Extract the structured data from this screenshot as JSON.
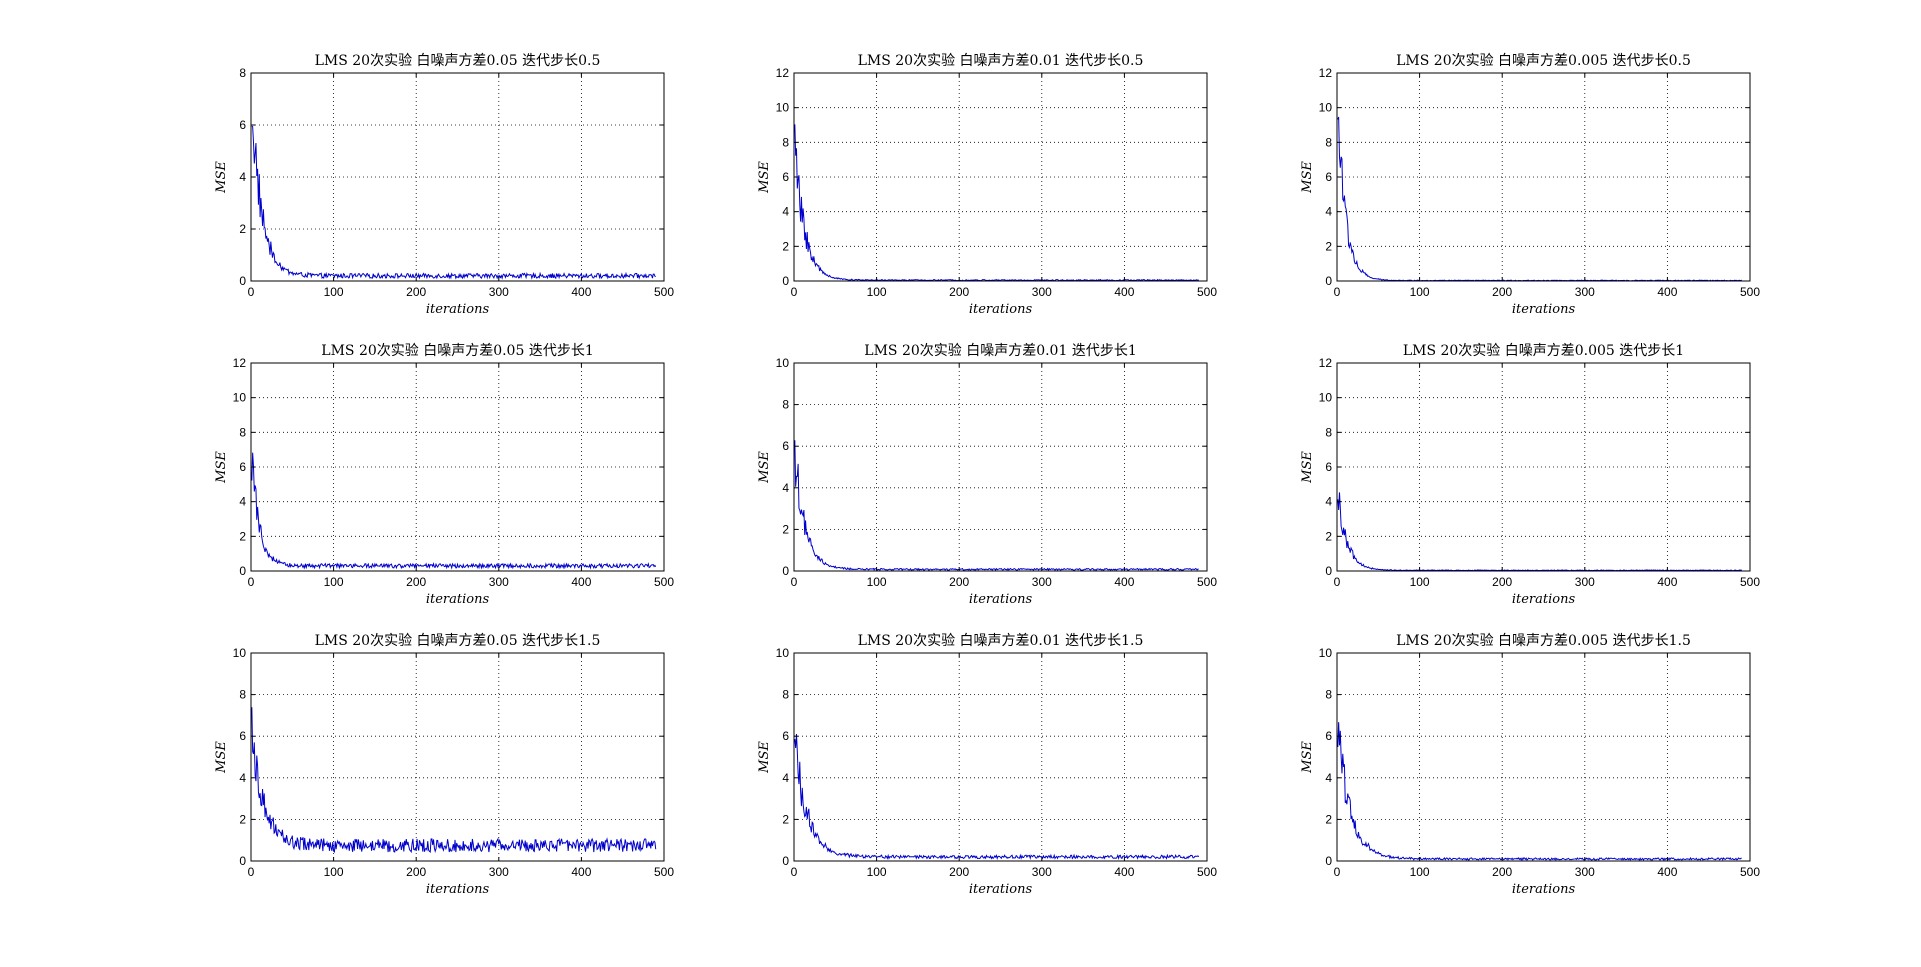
{
  "figure": {
    "background": "#ffffff",
    "line_color": "#0000cc"
  },
  "chart_data": [
    {
      "type": "line",
      "title": "LMS 20次实验 白噪声方差0.05 迭代步长0.5",
      "xlabel": "iterations",
      "ylabel": "MSE",
      "xlim": [
        0,
        500
      ],
      "ylim": [
        0,
        8
      ],
      "xticks": [
        0,
        100,
        200,
        300,
        400,
        500
      ],
      "yticks": [
        0,
        2,
        4,
        6,
        8
      ],
      "grid": true,
      "series": [
        {
          "color": "#0000cc",
          "initial": 6.9,
          "time_constant": 12,
          "steady_state": 0.2,
          "noise_amplitude": 0.09
        }
      ]
    },
    {
      "type": "line",
      "title": "LMS 20次实验 白噪声方差0.01 迭代步长0.5",
      "xlabel": "iterations",
      "ylabel": "MSE",
      "xlim": [
        0,
        500
      ],
      "ylim": [
        0,
        12
      ],
      "xticks": [
        0,
        100,
        200,
        300,
        400,
        500
      ],
      "yticks": [
        0,
        2,
        4,
        6,
        8,
        10,
        12
      ],
      "grid": true,
      "series": [
        {
          "color": "#0000cc",
          "initial": 7.8,
          "time_constant": 12,
          "steady_state": 0.05,
          "noise_amplitude": 0.03
        }
      ]
    },
    {
      "type": "line",
      "title": "LMS 20次实验 白噪声方差0.005 迭代步长0.5",
      "xlabel": "iterations",
      "ylabel": "MSE",
      "xlim": [
        0,
        500
      ],
      "ylim": [
        0,
        12
      ],
      "xticks": [
        0,
        100,
        200,
        300,
        400,
        500
      ],
      "yticks": [
        0,
        2,
        4,
        6,
        8,
        10,
        12
      ],
      "grid": true,
      "series": [
        {
          "color": "#0000cc",
          "initial": 9.6,
          "time_constant": 10,
          "steady_state": 0.03,
          "noise_amplitude": 0.02
        }
      ]
    },
    {
      "type": "line",
      "title": "LMS 20次实验 白噪声方差0.05 迭代步长1",
      "xlabel": "iterations",
      "ylabel": "MSE",
      "xlim": [
        0,
        500
      ],
      "ylim": [
        0,
        12
      ],
      "xticks": [
        0,
        100,
        200,
        300,
        400,
        500
      ],
      "yticks": [
        0,
        2,
        4,
        6,
        8,
        10,
        12
      ],
      "grid": true,
      "series": [
        {
          "color": "#0000cc",
          "initial": 6.5,
          "time_constant": 9,
          "steady_state": 0.3,
          "noise_amplitude": 0.12
        }
      ]
    },
    {
      "type": "line",
      "title": "LMS 20次实验 白噪声方差0.01 迭代步长1",
      "xlabel": "iterations",
      "ylabel": "MSE",
      "xlim": [
        0,
        500
      ],
      "ylim": [
        0,
        10
      ],
      "xticks": [
        0,
        100,
        200,
        300,
        400,
        500
      ],
      "yticks": [
        0,
        2,
        4,
        6,
        8,
        10
      ],
      "grid": true,
      "series": [
        {
          "color": "#0000cc",
          "initial": 5.8,
          "time_constant": 12,
          "steady_state": 0.08,
          "noise_amplitude": 0.04
        }
      ]
    },
    {
      "type": "line",
      "title": "LMS 20次实验 白噪声方差0.005 迭代步长1",
      "xlabel": "iterations",
      "ylabel": "MSE",
      "xlim": [
        0,
        500
      ],
      "ylim": [
        0,
        12
      ],
      "xticks": [
        0,
        100,
        200,
        300,
        400,
        500
      ],
      "yticks": [
        0,
        2,
        4,
        6,
        8,
        10,
        12
      ],
      "grid": true,
      "series": [
        {
          "color": "#0000cc",
          "initial": 4.6,
          "time_constant": 11,
          "steady_state": 0.04,
          "noise_amplitude": 0.02
        }
      ]
    },
    {
      "type": "line",
      "title": "LMS 20次实验 白噪声方差0.05 迭代步长1.5",
      "xlabel": "iterations",
      "ylabel": "MSE",
      "xlim": [
        0,
        500
      ],
      "ylim": [
        0,
        10
      ],
      "xticks": [
        0,
        100,
        200,
        300,
        400,
        500
      ],
      "yticks": [
        0,
        2,
        4,
        6,
        8,
        10
      ],
      "grid": true,
      "series": [
        {
          "color": "#0000cc",
          "initial": 6.0,
          "time_constant": 15,
          "steady_state": 0.75,
          "noise_amplitude": 0.32
        }
      ]
    },
    {
      "type": "line",
      "title": "LMS 20次实验 白噪声方差0.01 迭代步长1.5",
      "xlabel": "iterations",
      "ylabel": "MSE",
      "xlim": [
        0,
        500
      ],
      "ylim": [
        0,
        10
      ],
      "xticks": [
        0,
        100,
        200,
        300,
        400,
        500
      ],
      "yticks": [
        0,
        2,
        4,
        6,
        8,
        10
      ],
      "grid": true,
      "series": [
        {
          "color": "#0000cc",
          "initial": 5.8,
          "time_constant": 15,
          "steady_state": 0.2,
          "noise_amplitude": 0.08
        }
      ]
    },
    {
      "type": "line",
      "title": "LMS 20次实验 白噪声方差0.005 迭代步长1.5",
      "xlabel": "iterations",
      "ylabel": "MSE",
      "xlim": [
        0,
        500
      ],
      "ylim": [
        0,
        10
      ],
      "xticks": [
        0,
        100,
        200,
        300,
        400,
        500
      ],
      "yticks": [
        0,
        2,
        4,
        6,
        8,
        10
      ],
      "grid": true,
      "series": [
        {
          "color": "#0000cc",
          "initial": 6.6,
          "time_constant": 15,
          "steady_state": 0.1,
          "noise_amplitude": 0.05
        }
      ]
    }
  ]
}
